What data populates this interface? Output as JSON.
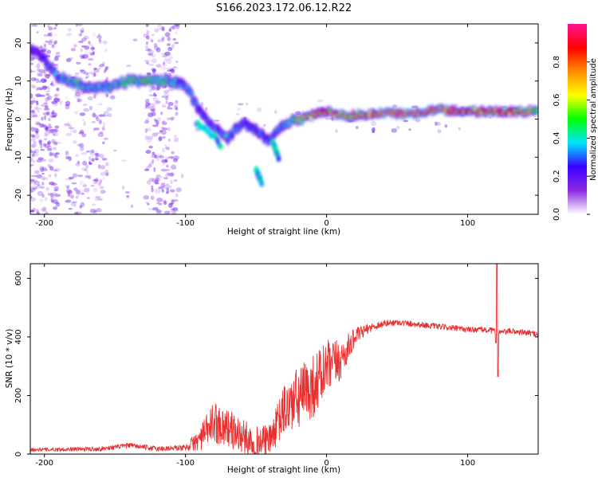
{
  "figure": {
    "title": "S166.2023.172.06.12.R22"
  },
  "chart_data": [
    {
      "type": "heatmap",
      "xlabel": "Height of straight line (km)",
      "ylabel": "Frequency (Hz)",
      "xlim": [
        -210,
        150
      ],
      "ylim": [
        -25,
        25
      ],
      "xticks": [
        -200,
        -100,
        0,
        100
      ],
      "yticks": [
        -20,
        -10,
        0,
        10,
        20
      ],
      "colorbar": {
        "label": "Normalized spectral amplitude",
        "range": [
          0,
          1
        ],
        "ticks": [
          "0.0",
          "0.2",
          "0.4",
          "0.6",
          "0.8"
        ],
        "tick_values": [
          0.0,
          0.2,
          0.4,
          0.6,
          0.8
        ],
        "colormap": [
          "#ffffff",
          "#8a2be2",
          "#3b00ff",
          "#00e5ff",
          "#00ff00",
          "#ffff00",
          "#ff8c00",
          "#ff0000",
          "#ff1493"
        ]
      },
      "ridge": {
        "x": [
          -205,
          -190,
          -175,
          -160,
          -150,
          -140,
          -130,
          -120,
          -110,
          -100,
          -90,
          -80,
          -70,
          -60,
          -50,
          -40,
          -30,
          -20,
          -10,
          0,
          10,
          20,
          40,
          60,
          80,
          100,
          120,
          140,
          150
        ],
        "y": [
          18,
          11,
          9,
          8,
          9,
          10,
          10,
          10,
          10,
          9,
          2,
          -2,
          -5,
          -1,
          -3,
          -6,
          -1,
          0,
          1,
          2,
          1,
          1,
          1.5,
          1.5,
          2.5,
          2,
          2,
          2,
          2
        ],
        "amplitude": [
          0.2,
          0.35,
          0.4,
          0.35,
          0.4,
          0.45,
          0.45,
          0.45,
          0.4,
          0.3,
          0.3,
          0.3,
          0.35,
          0.3,
          0.3,
          0.3,
          0.35,
          0.55,
          0.7,
          0.75,
          0.7,
          0.7,
          0.9,
          0.95,
          0.85,
          0.8,
          0.75,
          0.7,
          0.6
        ]
      },
      "branches": [
        {
          "x": [
            -92,
            -85,
            -78,
            -75
          ],
          "y": [
            -1,
            -3,
            -5,
            -7
          ]
        },
        {
          "x": [
            -50,
            -46
          ],
          "y": [
            -13,
            -17
          ]
        },
        {
          "x": [
            -38,
            -34
          ],
          "y": [
            -6,
            -10
          ]
        }
      ]
    },
    {
      "type": "line",
      "xlabel": "Height of straight line (km)",
      "ylabel": "SNR (10 * v/v)",
      "xlim": [
        -210,
        150
      ],
      "ylim": [
        0,
        650
      ],
      "xticks": [
        -200,
        -100,
        0,
        100
      ],
      "yticks": [
        0,
        200,
        400,
        600
      ],
      "color": "#e83030",
      "baseline": {
        "x": [
          -210,
          -160,
          -140,
          -120,
          -100,
          -90,
          -80,
          -70,
          -60,
          -50,
          -40,
          -30,
          -20,
          -10,
          0,
          10,
          20,
          30,
          40,
          50,
          60,
          80,
          100,
          110,
          120,
          125,
          130,
          140,
          150
        ],
        "y": [
          15,
          18,
          30,
          18,
          22,
          50,
          110,
          90,
          60,
          40,
          50,
          150,
          190,
          230,
          290,
          320,
          400,
          430,
          445,
          450,
          445,
          435,
          425,
          425,
          420,
          415,
          420,
          415,
          410
        ]
      },
      "noise": {
        "x": [
          -210,
          -150,
          -100,
          -90,
          -80,
          -60,
          -40,
          -30,
          -20,
          -10,
          0,
          10,
          15,
          20,
          30,
          50,
          100,
          150
        ],
        "amplitude": [
          6,
          8,
          10,
          40,
          70,
          60,
          50,
          90,
          110,
          110,
          100,
          70,
          50,
          30,
          15,
          10,
          10,
          10
        ]
      },
      "spike": {
        "x": 121,
        "peak": 650,
        "trough": 265
      }
    }
  ]
}
